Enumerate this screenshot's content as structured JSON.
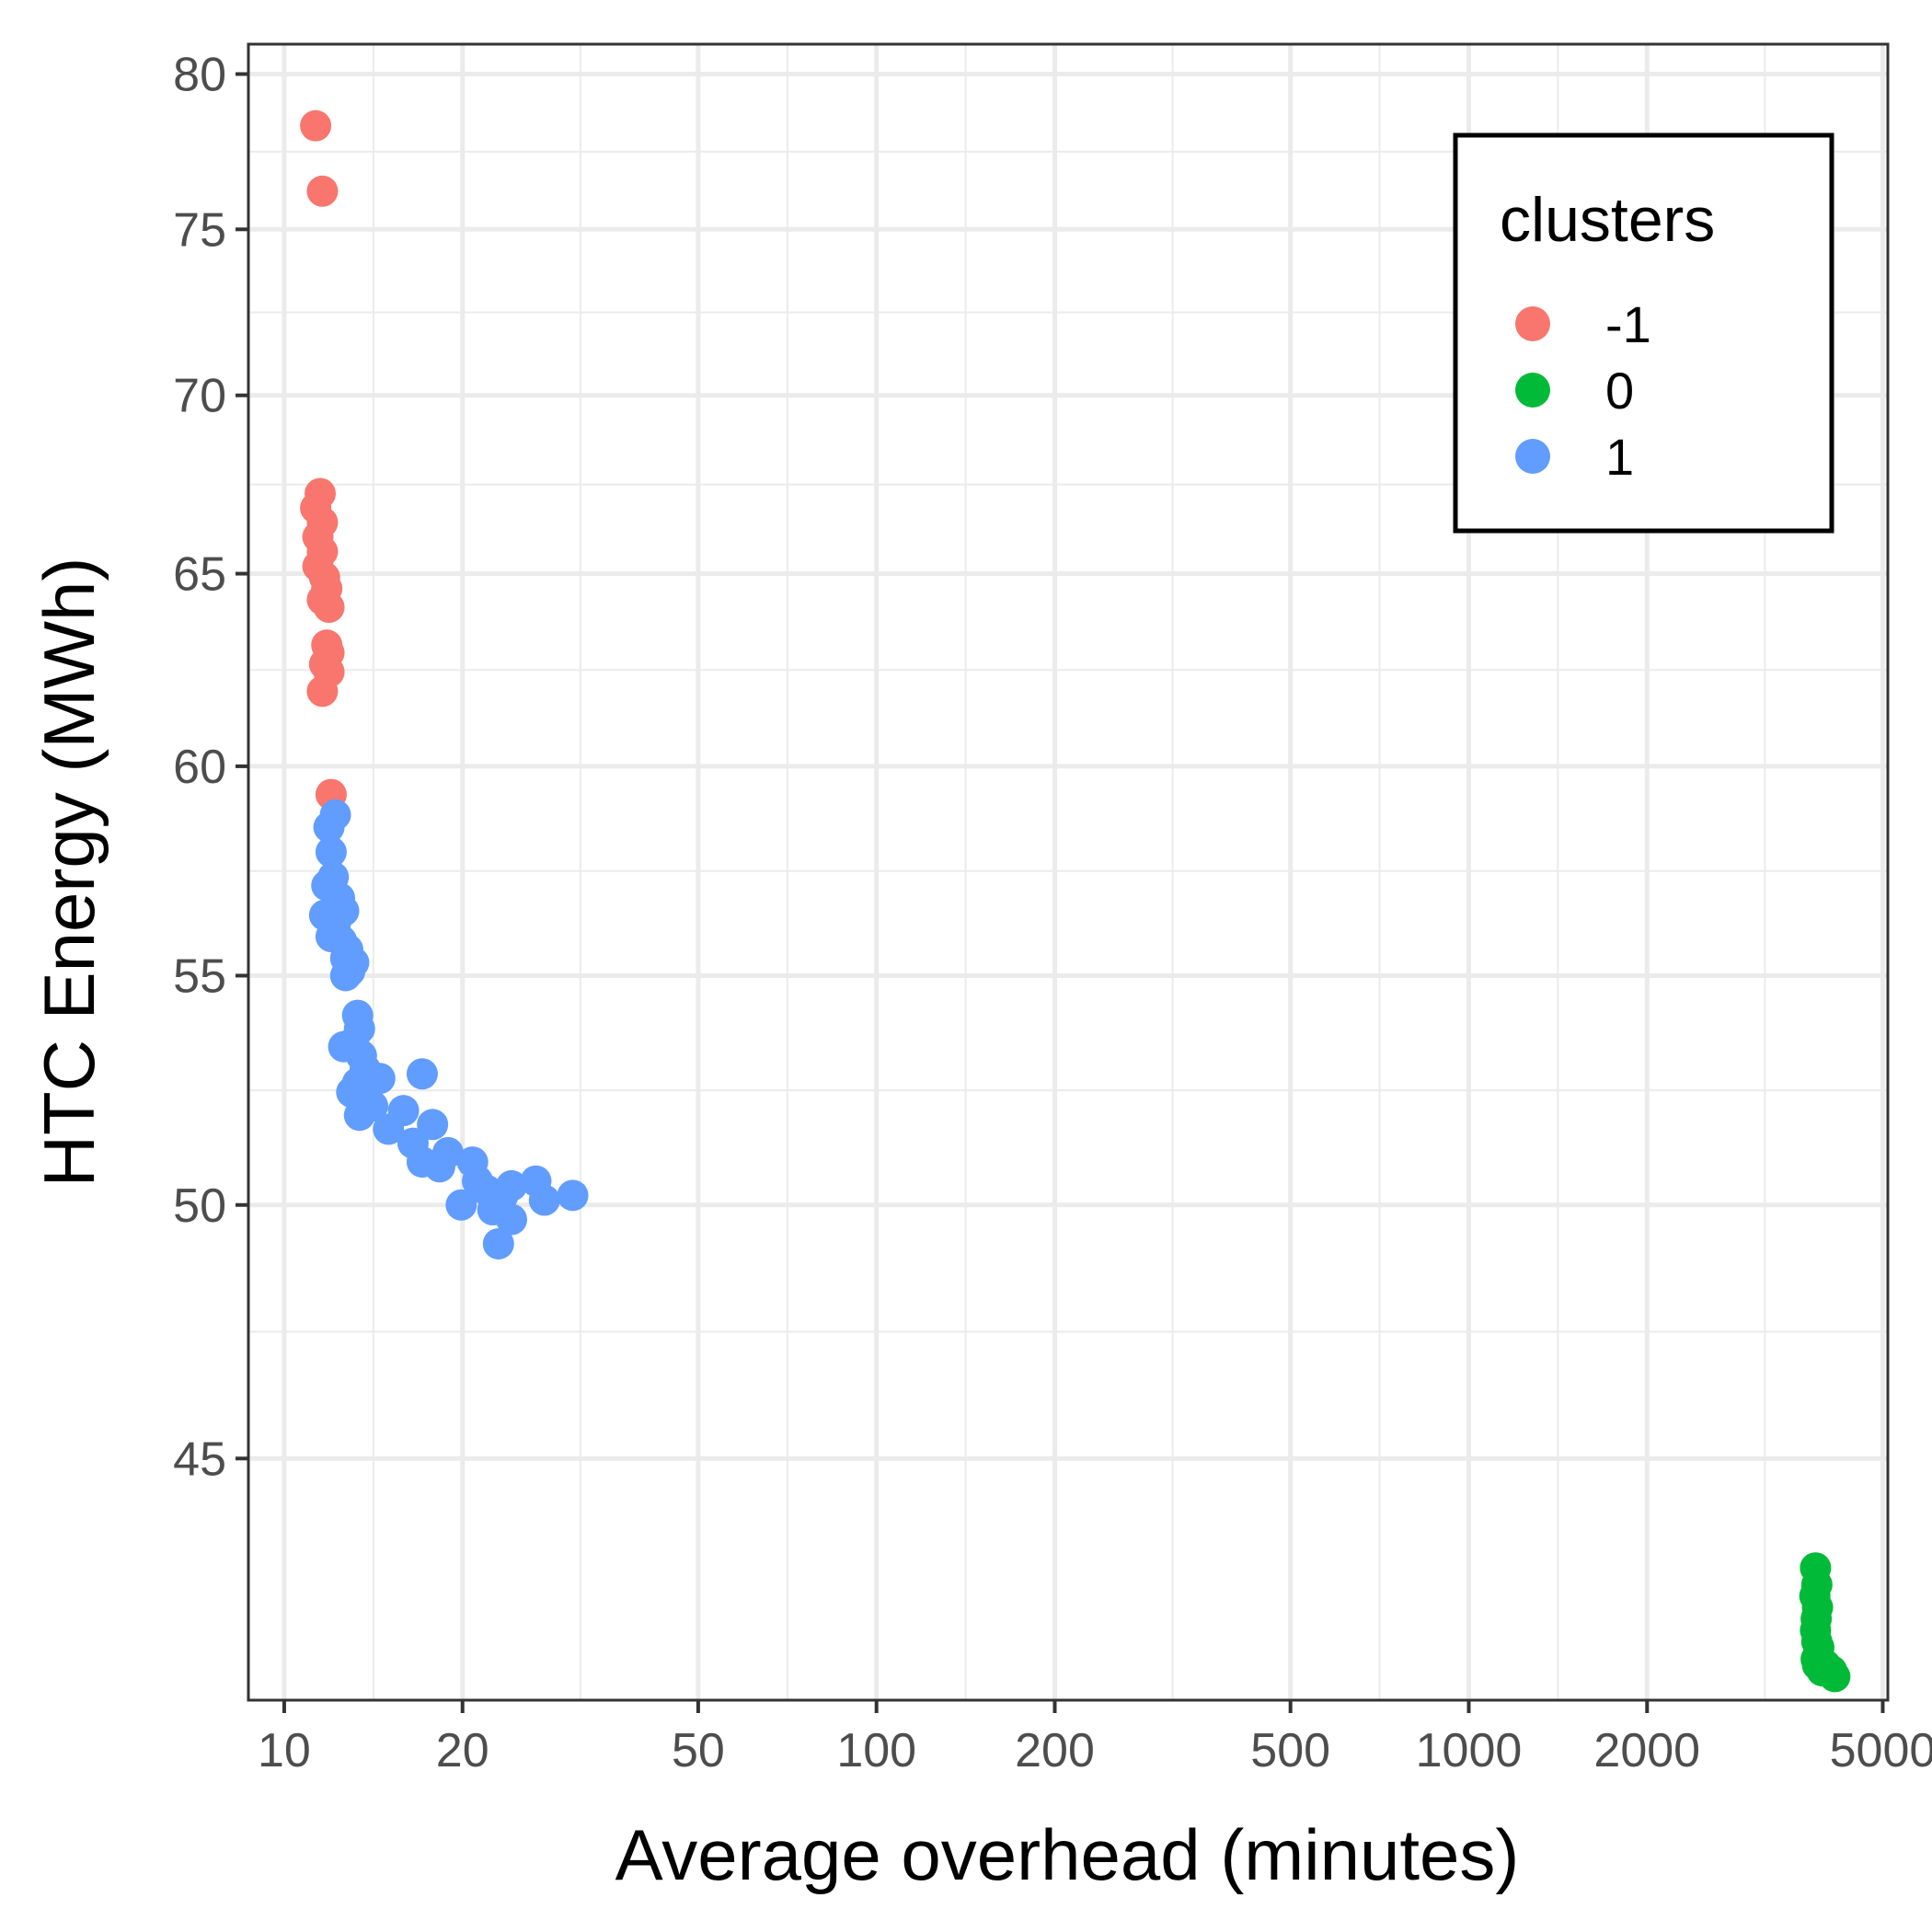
{
  "chart_data": {
    "type": "scatter",
    "xlabel": "Average overhead (minutes)",
    "ylabel": "HTC Energy (MWh)",
    "x_scale": "log10",
    "y_scale": "log10",
    "xlim": [
      8.7,
      5100
    ],
    "ylim": [
      40.7,
      81.0
    ],
    "x_ticks": [
      10,
      20,
      50,
      100,
      200,
      500,
      1000,
      2000,
      5000
    ],
    "x_tick_labels": [
      "10",
      "20",
      "50",
      "100",
      "200",
      "500",
      "1000",
      "2000",
      "5000"
    ],
    "y_ticks": [
      45,
      50,
      55,
      60,
      65,
      70,
      75,
      80
    ],
    "y_tick_labels": [
      "45",
      "50",
      "55",
      "60",
      "65",
      "70",
      "75",
      "80"
    ],
    "grid": true,
    "legend": {
      "title": "clusters",
      "position": "top-right"
    },
    "series": [
      {
        "name": "-1",
        "color": "#F8766D",
        "points": [
          [
            11.3,
            78.3
          ],
          [
            11.6,
            76.2
          ],
          [
            11.5,
            67.2
          ],
          [
            11.3,
            66.8
          ],
          [
            11.6,
            66.4
          ],
          [
            11.4,
            66.0
          ],
          [
            11.6,
            65.6
          ],
          [
            11.4,
            65.2
          ],
          [
            11.7,
            64.9
          ],
          [
            11.8,
            64.6
          ],
          [
            11.6,
            64.3
          ],
          [
            11.9,
            64.1
          ],
          [
            11.8,
            63.1
          ],
          [
            11.9,
            62.9
          ],
          [
            11.7,
            62.6
          ],
          [
            11.9,
            62.4
          ],
          [
            11.6,
            61.9
          ],
          [
            12.0,
            59.3
          ]
        ]
      },
      {
        "name": "0",
        "color": "#00BA38",
        "points": [
          [
            3850,
            43.0
          ],
          [
            3870,
            42.7
          ],
          [
            3840,
            42.5
          ],
          [
            3880,
            42.3
          ],
          [
            3860,
            42.1
          ],
          [
            3850,
            41.9
          ],
          [
            3870,
            41.7
          ],
          [
            3900,
            41.6
          ],
          [
            3860,
            41.4
          ],
          [
            3880,
            41.3
          ],
          [
            4000,
            41.3
          ],
          [
            4100,
            41.2
          ],
          [
            3950,
            41.2
          ],
          [
            4150,
            41.1
          ]
        ]
      },
      {
        "name": "1",
        "color": "#619CFF",
        "points": [
          [
            12.2,
            58.8
          ],
          [
            11.9,
            58.5
          ],
          [
            12.0,
            57.9
          ],
          [
            12.1,
            57.3
          ],
          [
            11.8,
            57.1
          ],
          [
            12.4,
            56.8
          ],
          [
            12.6,
            56.5
          ],
          [
            11.7,
            56.4
          ],
          [
            12.2,
            56.2
          ],
          [
            12.0,
            55.9
          ],
          [
            12.5,
            55.8
          ],
          [
            12.8,
            55.6
          ],
          [
            12.7,
            55.4
          ],
          [
            13.1,
            55.3
          ],
          [
            12.9,
            55.1
          ],
          [
            12.7,
            55.0
          ],
          [
            13.3,
            54.1
          ],
          [
            13.4,
            53.8
          ],
          [
            13.1,
            53.5
          ],
          [
            12.6,
            53.4
          ],
          [
            13.5,
            53.2
          ],
          [
            13.7,
            52.9
          ],
          [
            13.3,
            52.6
          ],
          [
            14.5,
            52.7
          ],
          [
            13.0,
            52.4
          ],
          [
            13.8,
            52.3
          ],
          [
            14.1,
            52.1
          ],
          [
            15.9,
            52.0
          ],
          [
            13.4,
            51.9
          ],
          [
            15.0,
            51.6
          ],
          [
            17.1,
            52.8
          ],
          [
            16.5,
            51.3
          ],
          [
            17.8,
            51.7
          ],
          [
            17.1,
            50.9
          ],
          [
            18.3,
            50.8
          ],
          [
            18.9,
            51.1
          ],
          [
            20.8,
            50.9
          ],
          [
            19.9,
            50.0
          ],
          [
            21.2,
            50.5
          ],
          [
            22.0,
            50.3
          ],
          [
            23.4,
            50.2
          ],
          [
            24.2,
            50.4
          ],
          [
            22.5,
            49.9
          ],
          [
            24.2,
            49.7
          ],
          [
            23.0,
            49.2
          ],
          [
            26.6,
            50.5
          ],
          [
            27.5,
            50.1
          ],
          [
            30.7,
            50.2
          ]
        ]
      }
    ]
  }
}
